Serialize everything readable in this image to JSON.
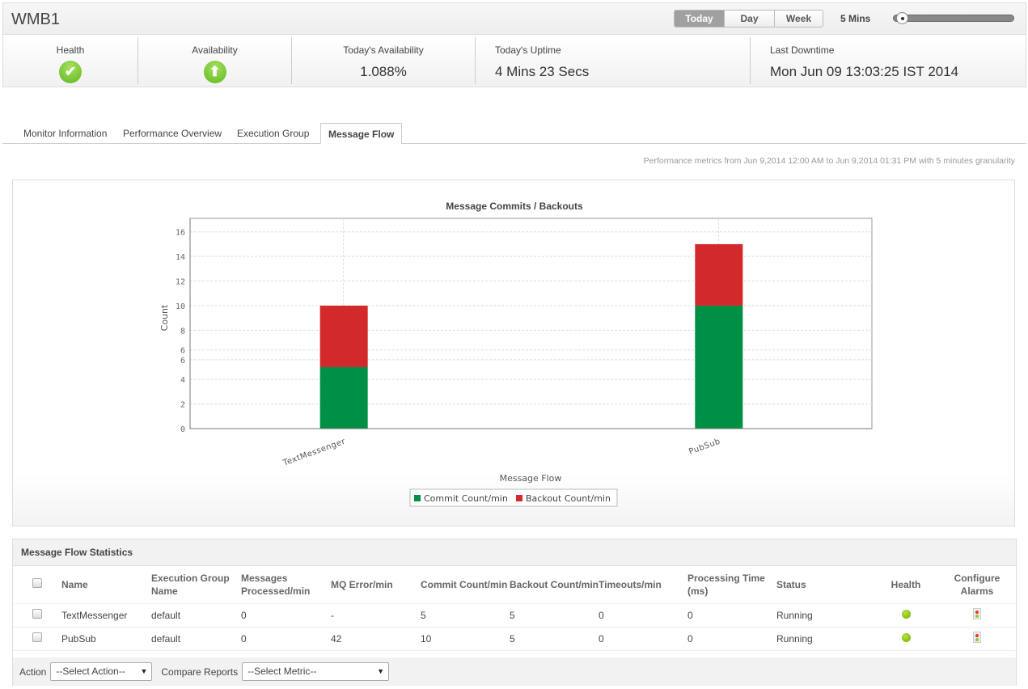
{
  "header": {
    "title": "WMB1",
    "periods": [
      "Today",
      "Day",
      "Week"
    ],
    "selected_period": "Today",
    "granularity": "5 Mins",
    "slider_level": 0
  },
  "metrics": {
    "health_label": "Health",
    "availability_label": "Availability",
    "todays_availability_label": "Today's Availability",
    "todays_availability": "1.088%",
    "uptime_label": "Today's Uptime",
    "uptime": "4 Mins 23 Secs",
    "last_downtime_label": "Last Downtime",
    "last_downtime": "Mon Jun 09 13:03:25 IST 2014"
  },
  "tabs": [
    "Monitor Information",
    "Performance Overview",
    "Execution Group",
    "Message Flow"
  ],
  "perf_note": "Performance metrics from Jun 9,2014 12:00 AM to Jun 9,2014 01:31 PM with 5 minutes granularity",
  "colors": {
    "commit": "#009045",
    "backout": "#d2292b"
  },
  "chart_data": {
    "type": "bar",
    "stacked": true,
    "title": "Message Commits / Backouts",
    "xlabel": "Message Flow",
    "ylabel": "Count",
    "categories": [
      "TextMessenger",
      "PubSub"
    ],
    "series": [
      {
        "name": "Commit Count/min",
        "values": [
          5,
          10
        ]
      },
      {
        "name": "Backout Count/min",
        "values": [
          5,
          5
        ]
      }
    ],
    "y_tick_labels": [
      "0",
      "2",
      "4",
      "6",
      "6",
      "8",
      "10",
      "12",
      "14",
      "16"
    ],
    "y_tick_values": [
      0,
      2,
      4,
      5.6,
      6.4,
      8,
      10,
      12,
      14,
      16
    ],
    "ylim": [
      0,
      17.1
    ],
    "grid": true,
    "legend": "bottom"
  },
  "stats": {
    "title": "Message Flow Statistics",
    "headers": [
      "Name",
      "Execution Group Name",
      "Messages Processed/min",
      "MQ Error/min",
      "Commit Count/min",
      "Backout Count/min",
      "Timeouts/min",
      "Processing Time (ms)",
      "Status",
      "Health",
      "Configure Alarms"
    ],
    "rows": [
      [
        "TextMessenger",
        "default",
        "0",
        "-",
        "5",
        "5",
        "0",
        "0",
        "Running"
      ],
      [
        "PubSub",
        "default",
        "0",
        "42",
        "10",
        "5",
        "0",
        "0",
        "Running"
      ]
    ],
    "action_label": "Action",
    "action_select": "--Select Action--",
    "compare_label": "Compare Reports",
    "compare_select": "--Select Metric--"
  }
}
